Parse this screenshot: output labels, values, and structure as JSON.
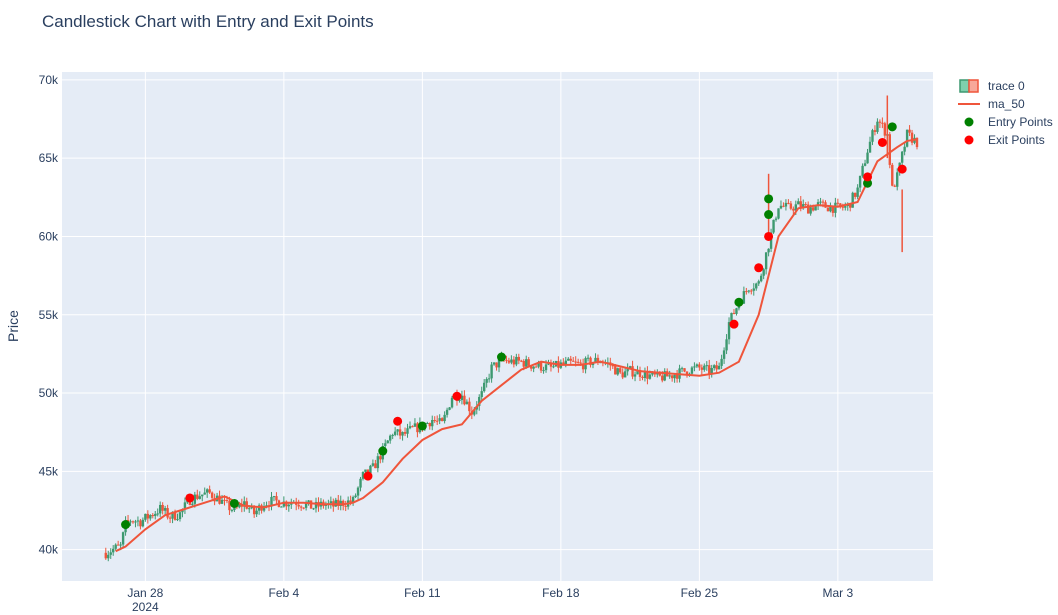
{
  "chart_data": {
    "type": "candlestick",
    "title": "Candlestick Chart with Entry and Exit Points",
    "xlabel": "",
    "ylabel": "Price",
    "xlim": [
      "2024-01-25",
      "2024-03-07"
    ],
    "ylim": [
      38000,
      70500
    ],
    "y_ticks": [
      40000,
      45000,
      50000,
      55000,
      60000,
      65000,
      70000
    ],
    "y_tick_labels": [
      "40k",
      "45k",
      "50k",
      "55k",
      "60k",
      "65k",
      "70k"
    ],
    "x_ticks": [
      "2024-01-28",
      "2024-02-04",
      "2024-02-11",
      "2024-02-18",
      "2024-02-25",
      "2024-03-03"
    ],
    "x_tick_labels": [
      "Jan 28",
      "Feb 4",
      "Feb 11",
      "Feb 18",
      "Feb 25",
      "Mar 3"
    ],
    "x_tick_sublabel": "2024",
    "grid": true,
    "legend_position": "top-right",
    "legend": [
      "trace 0",
      "ma_50",
      "Entry Points",
      "Exit Points"
    ],
    "colors": {
      "increasing": "#3d9970",
      "decreasing": "#ef553b",
      "ma_50": "#ef553b",
      "entry": "#008000",
      "exit": "#ff0000",
      "plot_bg": "#e5ecf6"
    },
    "price_path": [
      [
        "2024-01-26 00:00",
        39800
      ],
      [
        "2024-01-26 12:00",
        40100
      ],
      [
        "2024-01-26 18:00",
        40200
      ],
      [
        "2024-01-27 00:00",
        41600
      ],
      [
        "2024-01-27 06:00",
        41900
      ],
      [
        "2024-01-27 18:00",
        41800
      ],
      [
        "2024-01-28 06:00",
        42200
      ],
      [
        "2024-01-28 18:00",
        42600
      ],
      [
        "2024-01-29 06:00",
        42100
      ],
      [
        "2024-01-29 18:00",
        42300
      ],
      [
        "2024-01-30 06:00",
        43200
      ],
      [
        "2024-01-30 18:00",
        43500
      ],
      [
        "2024-01-31 06:00",
        43600
      ],
      [
        "2024-01-31 18:00",
        43200
      ],
      [
        "2024-02-01 00:00",
        42900
      ],
      [
        "2024-02-01 12:00",
        42500
      ],
      [
        "2024-02-02 00:00",
        43000
      ],
      [
        "2024-02-02 12:00",
        42300
      ],
      [
        "2024-02-03 00:00",
        43000
      ],
      [
        "2024-02-03 12:00",
        43100
      ],
      [
        "2024-02-04 00:00",
        43000
      ],
      [
        "2024-02-04 12:00",
        43100
      ],
      [
        "2024-02-05 00:00",
        42900
      ],
      [
        "2024-02-05 12:00",
        42700
      ],
      [
        "2024-02-06 00:00",
        42900
      ],
      [
        "2024-02-06 12:00",
        42800
      ],
      [
        "2024-02-07 00:00",
        43000
      ],
      [
        "2024-02-07 12:00",
        43100
      ],
      [
        "2024-02-08 00:00",
        44700
      ],
      [
        "2024-02-08 12:00",
        45200
      ],
      [
        "2024-02-09 00:00",
        46300
      ],
      [
        "2024-02-09 12:00",
        47500
      ],
      [
        "2024-02-10 00:00",
        47300
      ],
      [
        "2024-02-10 12:00",
        47700
      ],
      [
        "2024-02-11 00:00",
        47900
      ],
      [
        "2024-02-11 12:00",
        48300
      ],
      [
        "2024-02-12 00:00",
        48000
      ],
      [
        "2024-02-12 12:00",
        49800
      ],
      [
        "2024-02-13 00:00",
        49900
      ],
      [
        "2024-02-13 12:00",
        48800
      ],
      [
        "2024-02-14 00:00",
        49900
      ],
      [
        "2024-02-14 12:00",
        51600
      ],
      [
        "2024-02-15 00:00",
        52100
      ],
      [
        "2024-02-15 12:00",
        52000
      ],
      [
        "2024-02-16 00:00",
        52000
      ],
      [
        "2024-02-16 12:00",
        51800
      ],
      [
        "2024-02-17 00:00",
        51700
      ],
      [
        "2024-02-17 12:00",
        51600
      ],
      [
        "2024-02-18 00:00",
        51800
      ],
      [
        "2024-02-18 12:00",
        51900
      ],
      [
        "2024-02-19 00:00",
        51800
      ],
      [
        "2024-02-19 12:00",
        52000
      ],
      [
        "2024-02-20 00:00",
        52100
      ],
      [
        "2024-02-20 12:00",
        51800
      ],
      [
        "2024-02-21 00:00",
        51200
      ],
      [
        "2024-02-21 12:00",
        51400
      ],
      [
        "2024-02-22 00:00",
        51300
      ],
      [
        "2024-02-22 12:00",
        51100
      ],
      [
        "2024-02-23 00:00",
        51000
      ],
      [
        "2024-02-23 12:00",
        51100
      ],
      [
        "2024-02-24 00:00",
        51300
      ],
      [
        "2024-02-24 12:00",
        51500
      ],
      [
        "2024-02-25 00:00",
        51600
      ],
      [
        "2024-02-25 12:00",
        51400
      ],
      [
        "2024-02-26 00:00",
        51600
      ],
      [
        "2024-02-26 12:00",
        54500
      ],
      [
        "2024-02-27 00:00",
        55800
      ],
      [
        "2024-02-27 12:00",
        56800
      ],
      [
        "2024-02-28 00:00",
        57000
      ],
      [
        "2024-02-28 12:00",
        59500
      ],
      [
        "2024-02-29 00:00",
        62000
      ],
      [
        "2024-02-29 12:00",
        61800
      ],
      [
        "2024-03-01 00:00",
        62000
      ],
      [
        "2024-03-01 12:00",
        61800
      ],
      [
        "2024-03-02 00:00",
        62000
      ],
      [
        "2024-03-02 12:00",
        61900
      ],
      [
        "2024-03-03 00:00",
        61800
      ],
      [
        "2024-03-03 12:00",
        61900
      ],
      [
        "2024-03-04 00:00",
        63000
      ],
      [
        "2024-03-04 12:00",
        65500
      ],
      [
        "2024-03-05 00:00",
        67500
      ],
      [
        "2024-03-05 12:00",
        66500
      ],
      [
        "2024-03-05 18:00",
        63000
      ],
      [
        "2024-03-06 00:00",
        63800
      ],
      [
        "2024-03-06 12:00",
        66500
      ],
      [
        "2024-03-07 00:00",
        66000
      ]
    ],
    "ma_50": [
      [
        "2024-01-26 12:00",
        39900
      ],
      [
        "2024-01-27 00:00",
        40200
      ],
      [
        "2024-01-28 00:00",
        41300
      ],
      [
        "2024-01-29 00:00",
        42200
      ],
      [
        "2024-01-30 00:00",
        42600
      ],
      [
        "2024-01-31 00:00",
        43000
      ],
      [
        "2024-02-01 00:00",
        43400
      ],
      [
        "2024-02-01 12:00",
        43100
      ],
      [
        "2024-02-02 00:00",
        42800
      ],
      [
        "2024-02-03 00:00",
        42700
      ],
      [
        "2024-02-04 00:00",
        43000
      ],
      [
        "2024-02-05 00:00",
        43000
      ],
      [
        "2024-02-06 00:00",
        42900
      ],
      [
        "2024-02-07 00:00",
        42900
      ],
      [
        "2024-02-07 12:00",
        43000
      ],
      [
        "2024-02-08 00:00",
        43300
      ],
      [
        "2024-02-09 00:00",
        44300
      ],
      [
        "2024-02-10 00:00",
        45800
      ],
      [
        "2024-02-11 00:00",
        47000
      ],
      [
        "2024-02-12 00:00",
        47700
      ],
      [
        "2024-02-13 00:00",
        48000
      ],
      [
        "2024-02-14 00:00",
        49500
      ],
      [
        "2024-02-15 00:00",
        50500
      ],
      [
        "2024-02-16 00:00",
        51500
      ],
      [
        "2024-02-17 00:00",
        52000
      ],
      [
        "2024-02-18 00:00",
        51800
      ],
      [
        "2024-02-19 00:00",
        51800
      ],
      [
        "2024-02-20 00:00",
        52000
      ],
      [
        "2024-02-21 00:00",
        51700
      ],
      [
        "2024-02-22 00:00",
        51400
      ],
      [
        "2024-02-23 00:00",
        51300
      ],
      [
        "2024-02-24 00:00",
        51200
      ],
      [
        "2024-02-25 00:00",
        51100
      ],
      [
        "2024-02-26 00:00",
        51300
      ],
      [
        "2024-02-27 00:00",
        52000
      ],
      [
        "2024-02-28 00:00",
        55000
      ],
      [
        "2024-02-29 00:00",
        60000
      ],
      [
        "2024-03-01 00:00",
        61800
      ],
      [
        "2024-03-02 00:00",
        62000
      ],
      [
        "2024-03-03 00:00",
        61900
      ],
      [
        "2024-03-04 00:00",
        62200
      ],
      [
        "2024-03-05 00:00",
        64800
      ],
      [
        "2024-03-06 00:00",
        65700
      ],
      [
        "2024-03-06 12:00",
        66100
      ],
      [
        "2024-03-07 00:00",
        66200
      ]
    ],
    "entry_points": [
      [
        "2024-01-27 00:00",
        41600
      ],
      [
        "2024-02-01 12:00",
        42950
      ],
      [
        "2024-02-09 00:00",
        46300
      ],
      [
        "2024-02-11 00:00",
        47900
      ],
      [
        "2024-02-15 00:00",
        52300
      ],
      [
        "2024-02-27 00:00",
        55800
      ],
      [
        "2024-02-28 12:00",
        61400
      ],
      [
        "2024-02-28 12:00",
        62400
      ],
      [
        "2024-03-04 12:00",
        63400
      ],
      [
        "2024-03-05 18:00",
        67000
      ]
    ],
    "exit_points": [
      [
        "2024-01-30 06:00",
        43300
      ],
      [
        "2024-02-08 06:00",
        44700
      ],
      [
        "2024-02-09 18:00",
        48200
      ],
      [
        "2024-02-12 18:00",
        49800
      ],
      [
        "2024-02-26 18:00",
        54400
      ],
      [
        "2024-02-28 00:00",
        58000
      ],
      [
        "2024-02-28 12:00",
        60000
      ],
      [
        "2024-03-04 12:00",
        63800
      ],
      [
        "2024-03-05 06:00",
        66000
      ],
      [
        "2024-03-06 06:00",
        64300
      ]
    ],
    "spikes": [
      [
        "2024-02-28 12:00",
        64000
      ],
      [
        "2024-03-05 12:00",
        69000
      ],
      [
        "2024-03-06 06:00",
        59000
      ]
    ]
  }
}
